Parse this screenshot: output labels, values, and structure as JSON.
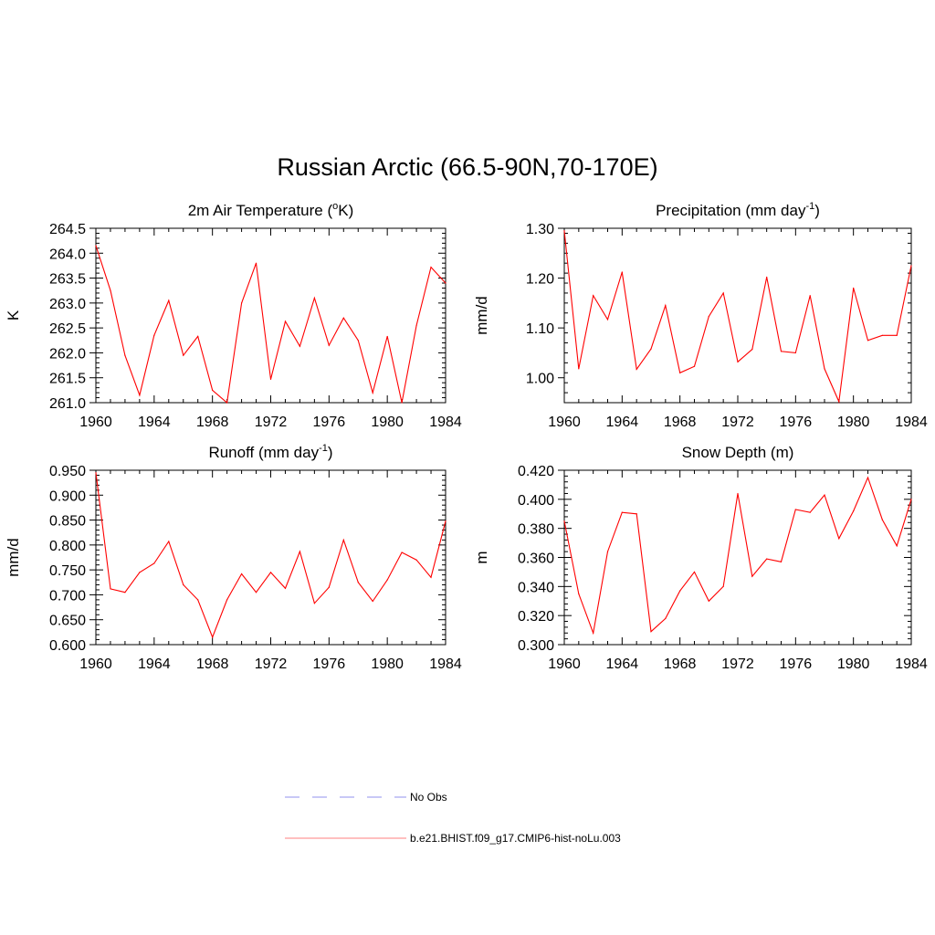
{
  "title": "Russian Arctic (66.5-90N,70-170E)",
  "colors": {
    "model_line": "#ff0000",
    "obs_line": "#a8a8f0",
    "axis": "#000000"
  },
  "legend": [
    {
      "label": "No Obs",
      "style": "dashed",
      "color": "#a8a8f0"
    },
    {
      "label": "b.e21.BHIST.f09_g17.CMIP6-hist-noLu.003",
      "style": "solid",
      "color": "#ff9999"
    }
  ],
  "chart_data": [
    {
      "type": "line",
      "title": "2m Air Temperature (oK)",
      "title_parts": {
        "main": "2m Air Temperature (",
        "sup": "o",
        "after": "K)"
      },
      "ylabel": "K",
      "xlim": [
        1960,
        1984
      ],
      "ylim": [
        261.0,
        264.5
      ],
      "xticks": [
        1960,
        1964,
        1968,
        1972,
        1976,
        1980,
        1984
      ],
      "yticks": [
        "261.0",
        "261.5",
        "262.0",
        "262.5",
        "263.0",
        "263.5",
        "264.0",
        "264.5"
      ],
      "x": [
        1960,
        1961,
        1962,
        1963,
        1964,
        1965,
        1966,
        1967,
        1968,
        1969,
        1970,
        1971,
        1972,
        1973,
        1974,
        1975,
        1976,
        1977,
        1978,
        1979,
        1980,
        1981,
        1982,
        1983,
        1984
      ],
      "values": [
        264.15,
        263.25,
        261.95,
        261.15,
        262.35,
        263.05,
        261.95,
        262.33,
        261.25,
        261.0,
        263.0,
        263.8,
        261.47,
        262.63,
        262.13,
        263.1,
        262.15,
        262.7,
        262.25,
        261.2,
        262.33,
        261.0,
        262.55,
        263.72,
        263.4
      ]
    },
    {
      "type": "line",
      "title": "Precipitation (mm day-1)",
      "title_parts": {
        "main": "Precipitation (mm day",
        "sup": "-1",
        "after": ")"
      },
      "ylabel": "mm/d",
      "xlim": [
        1960,
        1984
      ],
      "ylim": [
        0.95,
        1.3
      ],
      "xticks": [
        1960,
        1964,
        1968,
        1972,
        1976,
        1980,
        1984
      ],
      "yticks": [
        "1.00",
        "1.10",
        "1.20",
        "1.30"
      ],
      "x": [
        1960,
        1961,
        1962,
        1963,
        1964,
        1965,
        1966,
        1967,
        1968,
        1969,
        1970,
        1971,
        1972,
        1973,
        1974,
        1975,
        1976,
        1977,
        1978,
        1979,
        1980,
        1981,
        1982,
        1983,
        1984
      ],
      "values": [
        1.295,
        1.018,
        1.165,
        1.117,
        1.212,
        1.017,
        1.058,
        1.145,
        1.01,
        1.023,
        1.123,
        1.17,
        1.032,
        1.057,
        1.202,
        1.053,
        1.05,
        1.165,
        1.018,
        0.952,
        1.18,
        1.075,
        1.085,
        1.085,
        1.225
      ]
    },
    {
      "type": "line",
      "title": "Runoff (mm day-1)",
      "title_parts": {
        "main": "Runoff (mm day",
        "sup": "-1",
        "after": ")"
      },
      "ylabel": "mm/d",
      "xlim": [
        1960,
        1984
      ],
      "ylim": [
        0.6,
        0.95
      ],
      "xticks": [
        1960,
        1964,
        1968,
        1972,
        1976,
        1980,
        1984
      ],
      "yticks": [
        "0.600",
        "0.650",
        "0.700",
        "0.750",
        "0.800",
        "0.850",
        "0.900",
        "0.950"
      ],
      "x": [
        1960,
        1961,
        1962,
        1963,
        1964,
        1965,
        1966,
        1967,
        1968,
        1969,
        1970,
        1971,
        1972,
        1973,
        1974,
        1975,
        1976,
        1977,
        1978,
        1979,
        1980,
        1981,
        1982,
        1983,
        1984
      ],
      "values": [
        0.945,
        0.712,
        0.705,
        0.745,
        0.763,
        0.807,
        0.72,
        0.69,
        0.615,
        0.69,
        0.742,
        0.705,
        0.745,
        0.713,
        0.787,
        0.683,
        0.715,
        0.81,
        0.725,
        0.687,
        0.73,
        0.785,
        0.77,
        0.735,
        0.848
      ]
    },
    {
      "type": "line",
      "title": "Snow Depth (m)",
      "title_parts": {
        "main": "Snow Depth (m)",
        "sup": "",
        "after": ""
      },
      "ylabel": "m",
      "xlim": [
        1960,
        1984
      ],
      "ylim": [
        0.3,
        0.42
      ],
      "xticks": [
        1960,
        1964,
        1968,
        1972,
        1976,
        1980,
        1984
      ],
      "yticks": [
        "0.300",
        "0.320",
        "0.340",
        "0.360",
        "0.380",
        "0.400",
        "0.420"
      ],
      "x": [
        1960,
        1961,
        1962,
        1963,
        1964,
        1965,
        1966,
        1967,
        1968,
        1969,
        1970,
        1971,
        1972,
        1973,
        1974,
        1975,
        1976,
        1977,
        1978,
        1979,
        1980,
        1981,
        1982,
        1983,
        1984
      ],
      "values": [
        0.385,
        0.335,
        0.308,
        0.364,
        0.391,
        0.39,
        0.309,
        0.318,
        0.337,
        0.35,
        0.33,
        0.34,
        0.404,
        0.347,
        0.359,
        0.357,
        0.393,
        0.391,
        0.403,
        0.373,
        0.392,
        0.415,
        0.386,
        0.368,
        0.4
      ]
    }
  ]
}
